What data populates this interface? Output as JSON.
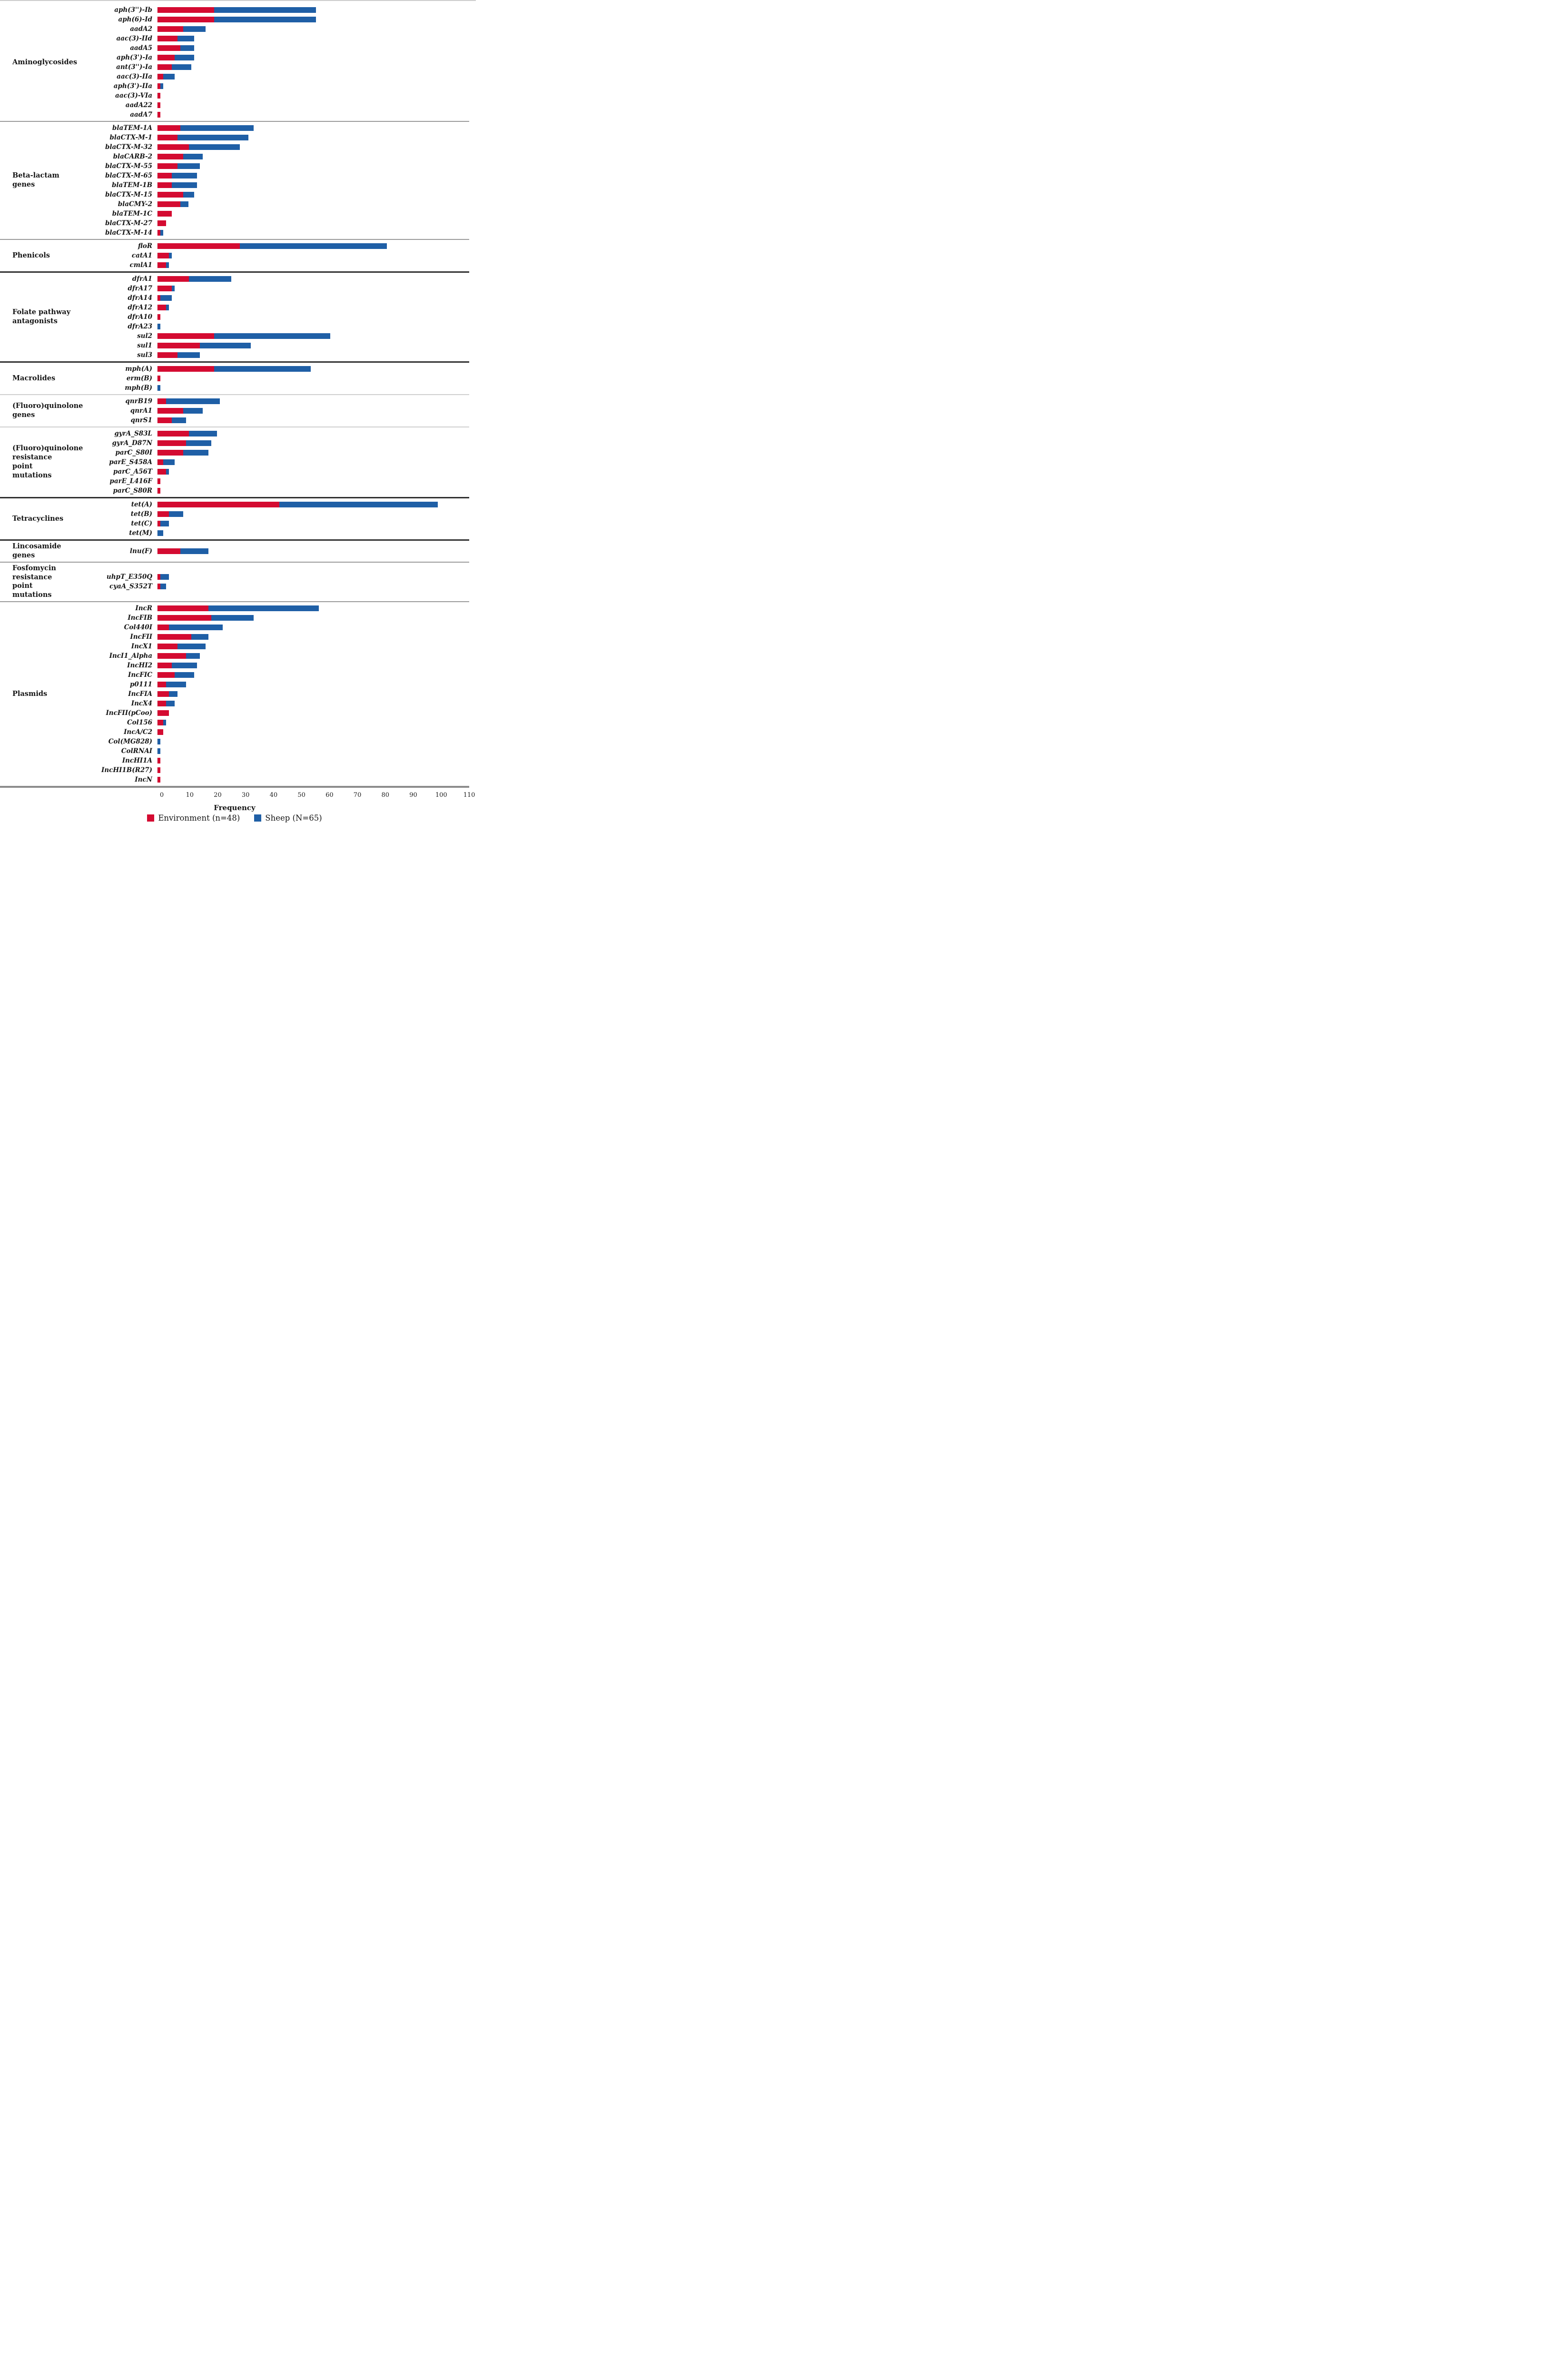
{
  "chart_data": {
    "type": "bar",
    "orientation": "horizontal",
    "stacked": true,
    "title": "",
    "xlabel": "Frequency",
    "xlim": [
      0,
      110
    ],
    "xticks": [
      "0",
      "10",
      "20",
      "30",
      "40",
      "50",
      "60",
      "70",
      "80",
      "90",
      "100",
      "110"
    ],
    "grid": false,
    "legend_position": "bottom-center",
    "colors": {
      "environment": "#d40b31",
      "sheep": "#1f5fa6"
    },
    "series_names": [
      "Environment (n=48)",
      "Sheep (N=65)"
    ],
    "groups": [
      {
        "category": "Aminoglycosides",
        "divider": "medium",
        "genes": [
          {
            "label": "aph(3'')-Ib",
            "environment": 20,
            "sheep": 36
          },
          {
            "label": "aph(6)-Id",
            "environment": 20,
            "sheep": 36
          },
          {
            "label": "aadA2",
            "environment": 9,
            "sheep": 8
          },
          {
            "label": "aac(3)-IId",
            "environment": 7,
            "sheep": 6
          },
          {
            "label": "aadA5",
            "environment": 8,
            "sheep": 5
          },
          {
            "label": "aph(3')-Ia",
            "environment": 6,
            "sheep": 7
          },
          {
            "label": "ant(3'')-Ia",
            "environment": 5,
            "sheep": 7
          },
          {
            "label": "aac(3)-IIa",
            "environment": 2,
            "sheep": 4
          },
          {
            "label": "aph(3')-IIa",
            "environment": 1,
            "sheep": 1
          },
          {
            "label": "aac(3)-VIa",
            "environment": 1,
            "sheep": 0
          },
          {
            "label": "aadA22",
            "environment": 1,
            "sheep": 0
          },
          {
            "label": "aadA7",
            "environment": 1,
            "sheep": 0
          }
        ]
      },
      {
        "category": "Beta-lactam genes",
        "divider": "medium",
        "genes": [
          {
            "label": "blaTEM-1A",
            "environment": 8,
            "sheep": 26
          },
          {
            "label": "blaCTX-M-1",
            "environment": 7,
            "sheep": 25
          },
          {
            "label": "blaCTX-M-32",
            "environment": 11,
            "sheep": 18
          },
          {
            "label": "blaCARB-2",
            "environment": 9,
            "sheep": 7
          },
          {
            "label": "blaCTX-M-55",
            "environment": 7,
            "sheep": 8
          },
          {
            "label": "blaCTX-M-65",
            "environment": 5,
            "sheep": 9
          },
          {
            "label": "blaTEM-1B",
            "environment": 5,
            "sheep": 9
          },
          {
            "label": "blaCTX-M-15",
            "environment": 9,
            "sheep": 4
          },
          {
            "label": "blaCMY-2",
            "environment": 8,
            "sheep": 3
          },
          {
            "label": "blaTEM-1C",
            "environment": 5,
            "sheep": 0
          },
          {
            "label": "blaCTX-M-27",
            "environment": 3,
            "sheep": 0
          },
          {
            "label": "blaCTX-M-14",
            "environment": 1,
            "sheep": 1
          }
        ]
      },
      {
        "category": "Phenicols",
        "divider": "dark",
        "genes": [
          {
            "label": "floR",
            "environment": 29,
            "sheep": 52
          },
          {
            "label": "catA1",
            "environment": 4,
            "sheep": 1
          },
          {
            "label": "cmlA1",
            "environment": 3,
            "sheep": 1
          }
        ]
      },
      {
        "category": "Folate pathway antagonists",
        "divider": "dark",
        "genes": [
          {
            "label": "dfrA1",
            "environment": 11,
            "sheep": 15
          },
          {
            "label": "dfrA17",
            "environment": 5,
            "sheep": 1
          },
          {
            "label": "dfrA14",
            "environment": 1,
            "sheep": 4
          },
          {
            "label": "dfrA12",
            "environment": 3,
            "sheep": 1
          },
          {
            "label": "dfrA10",
            "environment": 1,
            "sheep": 0
          },
          {
            "label": "dfrA23",
            "environment": 0,
            "sheep": 1
          },
          {
            "label": "sul2",
            "environment": 20,
            "sheep": 41
          },
          {
            "label": "sul1",
            "environment": 15,
            "sheep": 18
          },
          {
            "label": "sul3",
            "environment": 7,
            "sheep": 8
          }
        ]
      },
      {
        "category": "Macrolides",
        "divider": "light",
        "genes": [
          {
            "label": "mph(A)",
            "environment": 20,
            "sheep": 34
          },
          {
            "label": "erm(B)",
            "environment": 1,
            "sheep": 0
          },
          {
            "label": "mph(B)",
            "environment": 0,
            "sheep": 1
          }
        ]
      },
      {
        "category": "(Fluoro)quinolone genes",
        "divider": "light",
        "genes": [
          {
            "label": "qnrB19",
            "environment": 3,
            "sheep": 19
          },
          {
            "label": "qnrA1",
            "environment": 9,
            "sheep": 7
          },
          {
            "label": "qnrS1",
            "environment": 5,
            "sheep": 5
          }
        ]
      },
      {
        "category": "(Fluoro)quinolone resistance point mutations",
        "divider": "dark",
        "genes": [
          {
            "label": "gyrA_S83L",
            "environment": 11,
            "sheep": 10
          },
          {
            "label": "gyrA_D87N",
            "environment": 10,
            "sheep": 9
          },
          {
            "label": "parC_S80I",
            "environment": 9,
            "sheep": 9
          },
          {
            "label": "parE_S458A",
            "environment": 2,
            "sheep": 4
          },
          {
            "label": "parC_A56T",
            "environment": 3,
            "sheep": 1
          },
          {
            "label": "parE_L416F",
            "environment": 1,
            "sheep": 0
          },
          {
            "label": "parC_S80R",
            "environment": 1,
            "sheep": 0
          }
        ]
      },
      {
        "category": "Tetracyclines",
        "divider": "dark",
        "genes": [
          {
            "label": "tet(A)",
            "environment": 43,
            "sheep": 56
          },
          {
            "label": "tet(B)",
            "environment": 4,
            "sheep": 5
          },
          {
            "label": "tet(C)",
            "environment": 1,
            "sheep": 3
          },
          {
            "label": "tet(M)",
            "environment": 0,
            "sheep": 2
          }
        ]
      },
      {
        "category": "Lincosamide genes",
        "divider": "medium",
        "genes": [
          {
            "label": "lnu(F)",
            "environment": 8,
            "sheep": 10
          }
        ]
      },
      {
        "category": "Fosfomycin resistance point mutations",
        "divider": "medium",
        "genes": [
          {
            "label": "uhpT_E350Q",
            "environment": 1,
            "sheep": 3
          },
          {
            "label": "cyaA_S352T",
            "environment": 1,
            "sheep": 2
          }
        ]
      },
      {
        "category": "Plasmids",
        "divider": "axis",
        "genes": [
          {
            "label": "IncR",
            "environment": 18,
            "sheep": 39
          },
          {
            "label": "IncFIB",
            "environment": 19,
            "sheep": 15
          },
          {
            "label": "Col440I",
            "environment": 4,
            "sheep": 19
          },
          {
            "label": "IncFII",
            "environment": 12,
            "sheep": 6
          },
          {
            "label": "IncX1",
            "environment": 7,
            "sheep": 10
          },
          {
            "label": "IncI1_Alpha",
            "environment": 10,
            "sheep": 5
          },
          {
            "label": "IncHI2",
            "environment": 5,
            "sheep": 9
          },
          {
            "label": "IncFIC",
            "environment": 6,
            "sheep": 7
          },
          {
            "label": "p0111",
            "environment": 3,
            "sheep": 7
          },
          {
            "label": "IncFIA",
            "environment": 4,
            "sheep": 3
          },
          {
            "label": "IncX4",
            "environment": 3,
            "sheep": 3
          },
          {
            "label": "IncFII(pCoo)",
            "environment": 4,
            "sheep": 0
          },
          {
            "label": "Col156",
            "environment": 2,
            "sheep": 1
          },
          {
            "label": "IncA/C2",
            "environment": 2,
            "sheep": 0
          },
          {
            "label": "Col(MG828)",
            "environment": 0,
            "sheep": 1
          },
          {
            "label": "ColRNAI",
            "environment": 0,
            "sheep": 1
          },
          {
            "label": "IncHI1A",
            "environment": 1,
            "sheep": 0
          },
          {
            "label": "IncHI1B(R27)",
            "environment": 1,
            "sheep": 0
          },
          {
            "label": "IncN",
            "environment": 1,
            "sheep": 0
          }
        ]
      }
    ]
  },
  "axis": {
    "title": "Frequency"
  },
  "legend": {
    "environment": {
      "label": "Environment (n=48)",
      "color": "#d40b31"
    },
    "sheep": {
      "label": "Sheep (N=65)",
      "color": "#1f5fa6"
    }
  }
}
